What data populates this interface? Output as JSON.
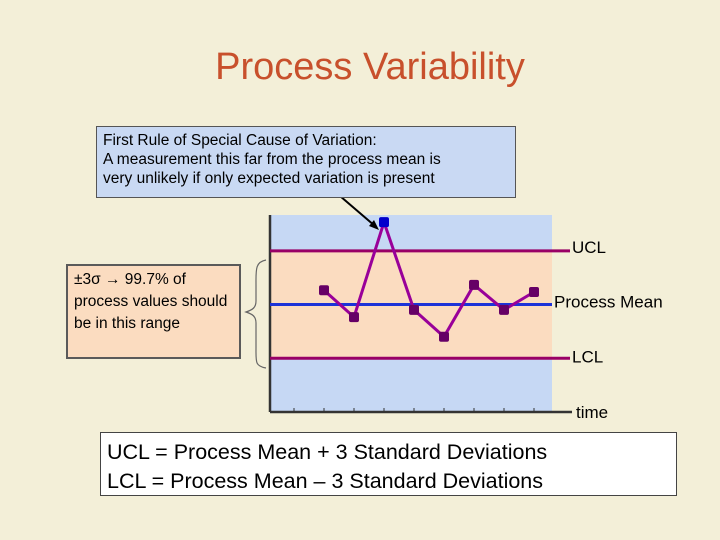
{
  "title": "Process Variability",
  "callout": {
    "line1": "First Rule of Special Cause of Variation:",
    "line2": "A measurement this far from the process mean is",
    "line3": "very unlikely if only expected variation is present"
  },
  "range_note": "±3σ → 99.7% of process values should be in this range",
  "formula": {
    "line1": "UCL = Process Mean + 3 Standard Deviations",
    "line2": "LCL = Process Mean – 3 Standard Deviations"
  },
  "colors": {
    "out_of_range_band": "#c6d8f4",
    "in_range_band": "#fbdcc0",
    "limit_line": "#990066",
    "mean_line": "#1c33d8",
    "series_line": "#990099",
    "series_marker": "#660066",
    "outlier_marker": "#0000cc"
  },
  "chart_data": {
    "type": "line",
    "xlabel": "time",
    "ucl_label": "UCL",
    "mean_label": "Process Mean",
    "lcl_label": "LCL",
    "ucl": 3,
    "mean": 0,
    "lcl": -3,
    "ylim": [
      -6,
      5
    ],
    "x": [
      1,
      2,
      3,
      4,
      5,
      6,
      7,
      8,
      9
    ],
    "values": [
      0.8,
      -0.7,
      4.6,
      -0.3,
      -1.8,
      1.1,
      -0.3,
      0.7,
      null
    ],
    "outlier_index": 2,
    "x_ticks": 9
  }
}
